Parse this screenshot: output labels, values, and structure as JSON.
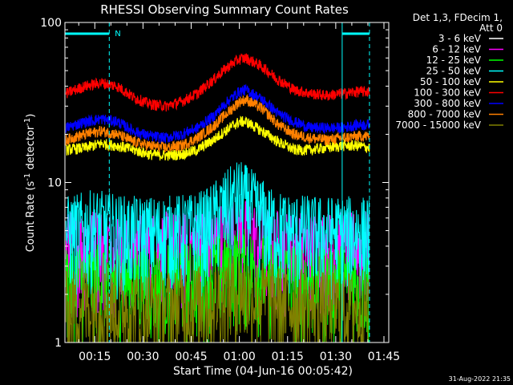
{
  "chart_data": {
    "type": "line",
    "title": "RHESSI Observing Summary Count Rates",
    "xlabel": "Start Time (04-Jun-16 00:05:42)",
    "ylabel_main": "Count Rate (s",
    "ylabel_sup1": "-1",
    "ylabel_mid": " detector",
    "ylabel_sup2": "-1",
    "ylabel_end": ")",
    "yscale": "log",
    "ylim": [
      1,
      100
    ],
    "xlim_min": [
      5.7,
      106.5
    ],
    "x_ticks": [
      {
        "min": 15,
        "label": "00:15"
      },
      {
        "min": 30,
        "label": "00:30"
      },
      {
        "min": 45,
        "label": "00:45"
      },
      {
        "min": 60,
        "label": "01:00"
      },
      {
        "min": 75,
        "label": "01:15"
      },
      {
        "min": 90,
        "label": "01:30"
      },
      {
        "min": 105,
        "label": "01:45"
      }
    ],
    "y_ticks": [
      {
        "value": 100,
        "label": "100"
      },
      {
        "value": 10,
        "label": "10"
      },
      {
        "value": 1,
        "label": "1"
      }
    ],
    "legend_header": [
      "Det 1,3, FDecim 1,",
      "Att 0"
    ],
    "footer_date": "31-Aug-2022 21:35",
    "annotation_N": "N",
    "night_bars": [
      [
        5.7,
        19.5
      ],
      [
        92.0,
        100.5
      ]
    ],
    "eclipse_lines": [
      {
        "min": 19.5,
        "style": "dashed"
      },
      {
        "min": 92.0,
        "style": "solid"
      },
      {
        "min": 100.5,
        "style": "dashed"
      }
    ],
    "series": [
      {
        "name": "3 - 6 keV",
        "color": "#000000",
        "x": [
          6,
          15,
          25,
          35,
          45,
          50,
          55,
          60,
          65,
          70,
          75,
          85,
          95,
          100
        ],
        "y": [
          1,
          1,
          1,
          1.3,
          1.6,
          2,
          2.4,
          2.6,
          2.4,
          2,
          1.5,
          1.1,
          1,
          1
        ]
      },
      {
        "name": "6 - 12 keV",
        "color": "#ff00ff",
        "x": [
          6,
          15,
          25,
          35,
          45,
          50,
          55,
          60,
          65,
          70,
          75,
          85,
          95,
          100
        ],
        "y": [
          4,
          4.2,
          4,
          4,
          4,
          4.2,
          4.6,
          5,
          4.6,
          4.2,
          4,
          4,
          4,
          4
        ]
      },
      {
        "name": "12 - 25 keV",
        "color": "#00ff00",
        "x": [
          6,
          15,
          25,
          35,
          45,
          50,
          55,
          60,
          65,
          70,
          75,
          85,
          95,
          100
        ],
        "y": [
          2.5,
          2.6,
          2.5,
          2.5,
          2.6,
          2.8,
          3,
          3.2,
          3,
          2.8,
          2.6,
          2.5,
          2.5,
          2.5
        ]
      },
      {
        "name": "25 - 50 keV",
        "color": "#00ffff",
        "x": [
          6,
          15,
          25,
          35,
          45,
          50,
          55,
          60,
          65,
          70,
          75,
          85,
          95,
          100
        ],
        "y": [
          5,
          5.5,
          5,
          5,
          5.2,
          5.6,
          7,
          8.5,
          7,
          5.6,
          5.2,
          5,
          5,
          5
        ]
      },
      {
        "name": "50 - 100 keV",
        "color": "#ffff00",
        "x": [
          6,
          12,
          17,
          22,
          27,
          32,
          37,
          42,
          47,
          52,
          57,
          60,
          62,
          67,
          72,
          77,
          82,
          87,
          92,
          97,
          100
        ],
        "y": [
          16,
          16.5,
          17.5,
          17,
          16,
          15,
          14.8,
          15,
          16,
          18.5,
          22,
          24,
          24,
          21,
          18,
          16,
          16,
          16.5,
          17,
          17,
          16.5
        ]
      },
      {
        "name": "100 - 300 keV",
        "color": "#ff0000",
        "x": [
          6,
          12,
          17,
          22,
          27,
          32,
          37,
          42,
          47,
          52,
          57,
          60,
          62,
          67,
          72,
          77,
          82,
          87,
          92,
          97,
          100
        ],
        "y": [
          36,
          40,
          42,
          40,
          34,
          31,
          30,
          32,
          36,
          44,
          54,
          59,
          60,
          53,
          44,
          38,
          36,
          35,
          36,
          37,
          37
        ]
      },
      {
        "name": "300 - 800 keV",
        "color": "#0000ff",
        "x": [
          6,
          12,
          17,
          22,
          27,
          32,
          37,
          42,
          47,
          52,
          57,
          60,
          62,
          67,
          72,
          77,
          82,
          87,
          92,
          97,
          100
        ],
        "y": [
          22,
          24,
          25,
          24,
          21,
          19.5,
          19,
          20,
          22,
          26,
          33,
          37,
          38,
          33,
          27,
          24,
          22,
          22,
          22,
          23,
          23
        ]
      },
      {
        "name": "800 - 7000 keV",
        "color": "#ff8000",
        "x": [
          6,
          12,
          17,
          22,
          27,
          32,
          37,
          42,
          47,
          52,
          57,
          60,
          62,
          67,
          72,
          77,
          82,
          87,
          92,
          97,
          100
        ],
        "y": [
          18.5,
          20,
          21,
          20,
          18,
          17,
          16.5,
          17,
          19,
          22.5,
          28,
          32,
          33,
          29,
          23,
          20,
          19,
          18.5,
          19,
          19.5,
          19.5
        ]
      },
      {
        "name": "7000 - 15000 keV",
        "color": "#808000",
        "x": [
          6,
          15,
          25,
          35,
          45,
          50,
          55,
          60,
          65,
          70,
          75,
          85,
          95,
          100
        ],
        "y": [
          1.7,
          1.8,
          1.7,
          1.7,
          1.8,
          1.9,
          2,
          2.2,
          2,
          1.9,
          1.8,
          1.7,
          1.7,
          1.7
        ]
      }
    ]
  }
}
